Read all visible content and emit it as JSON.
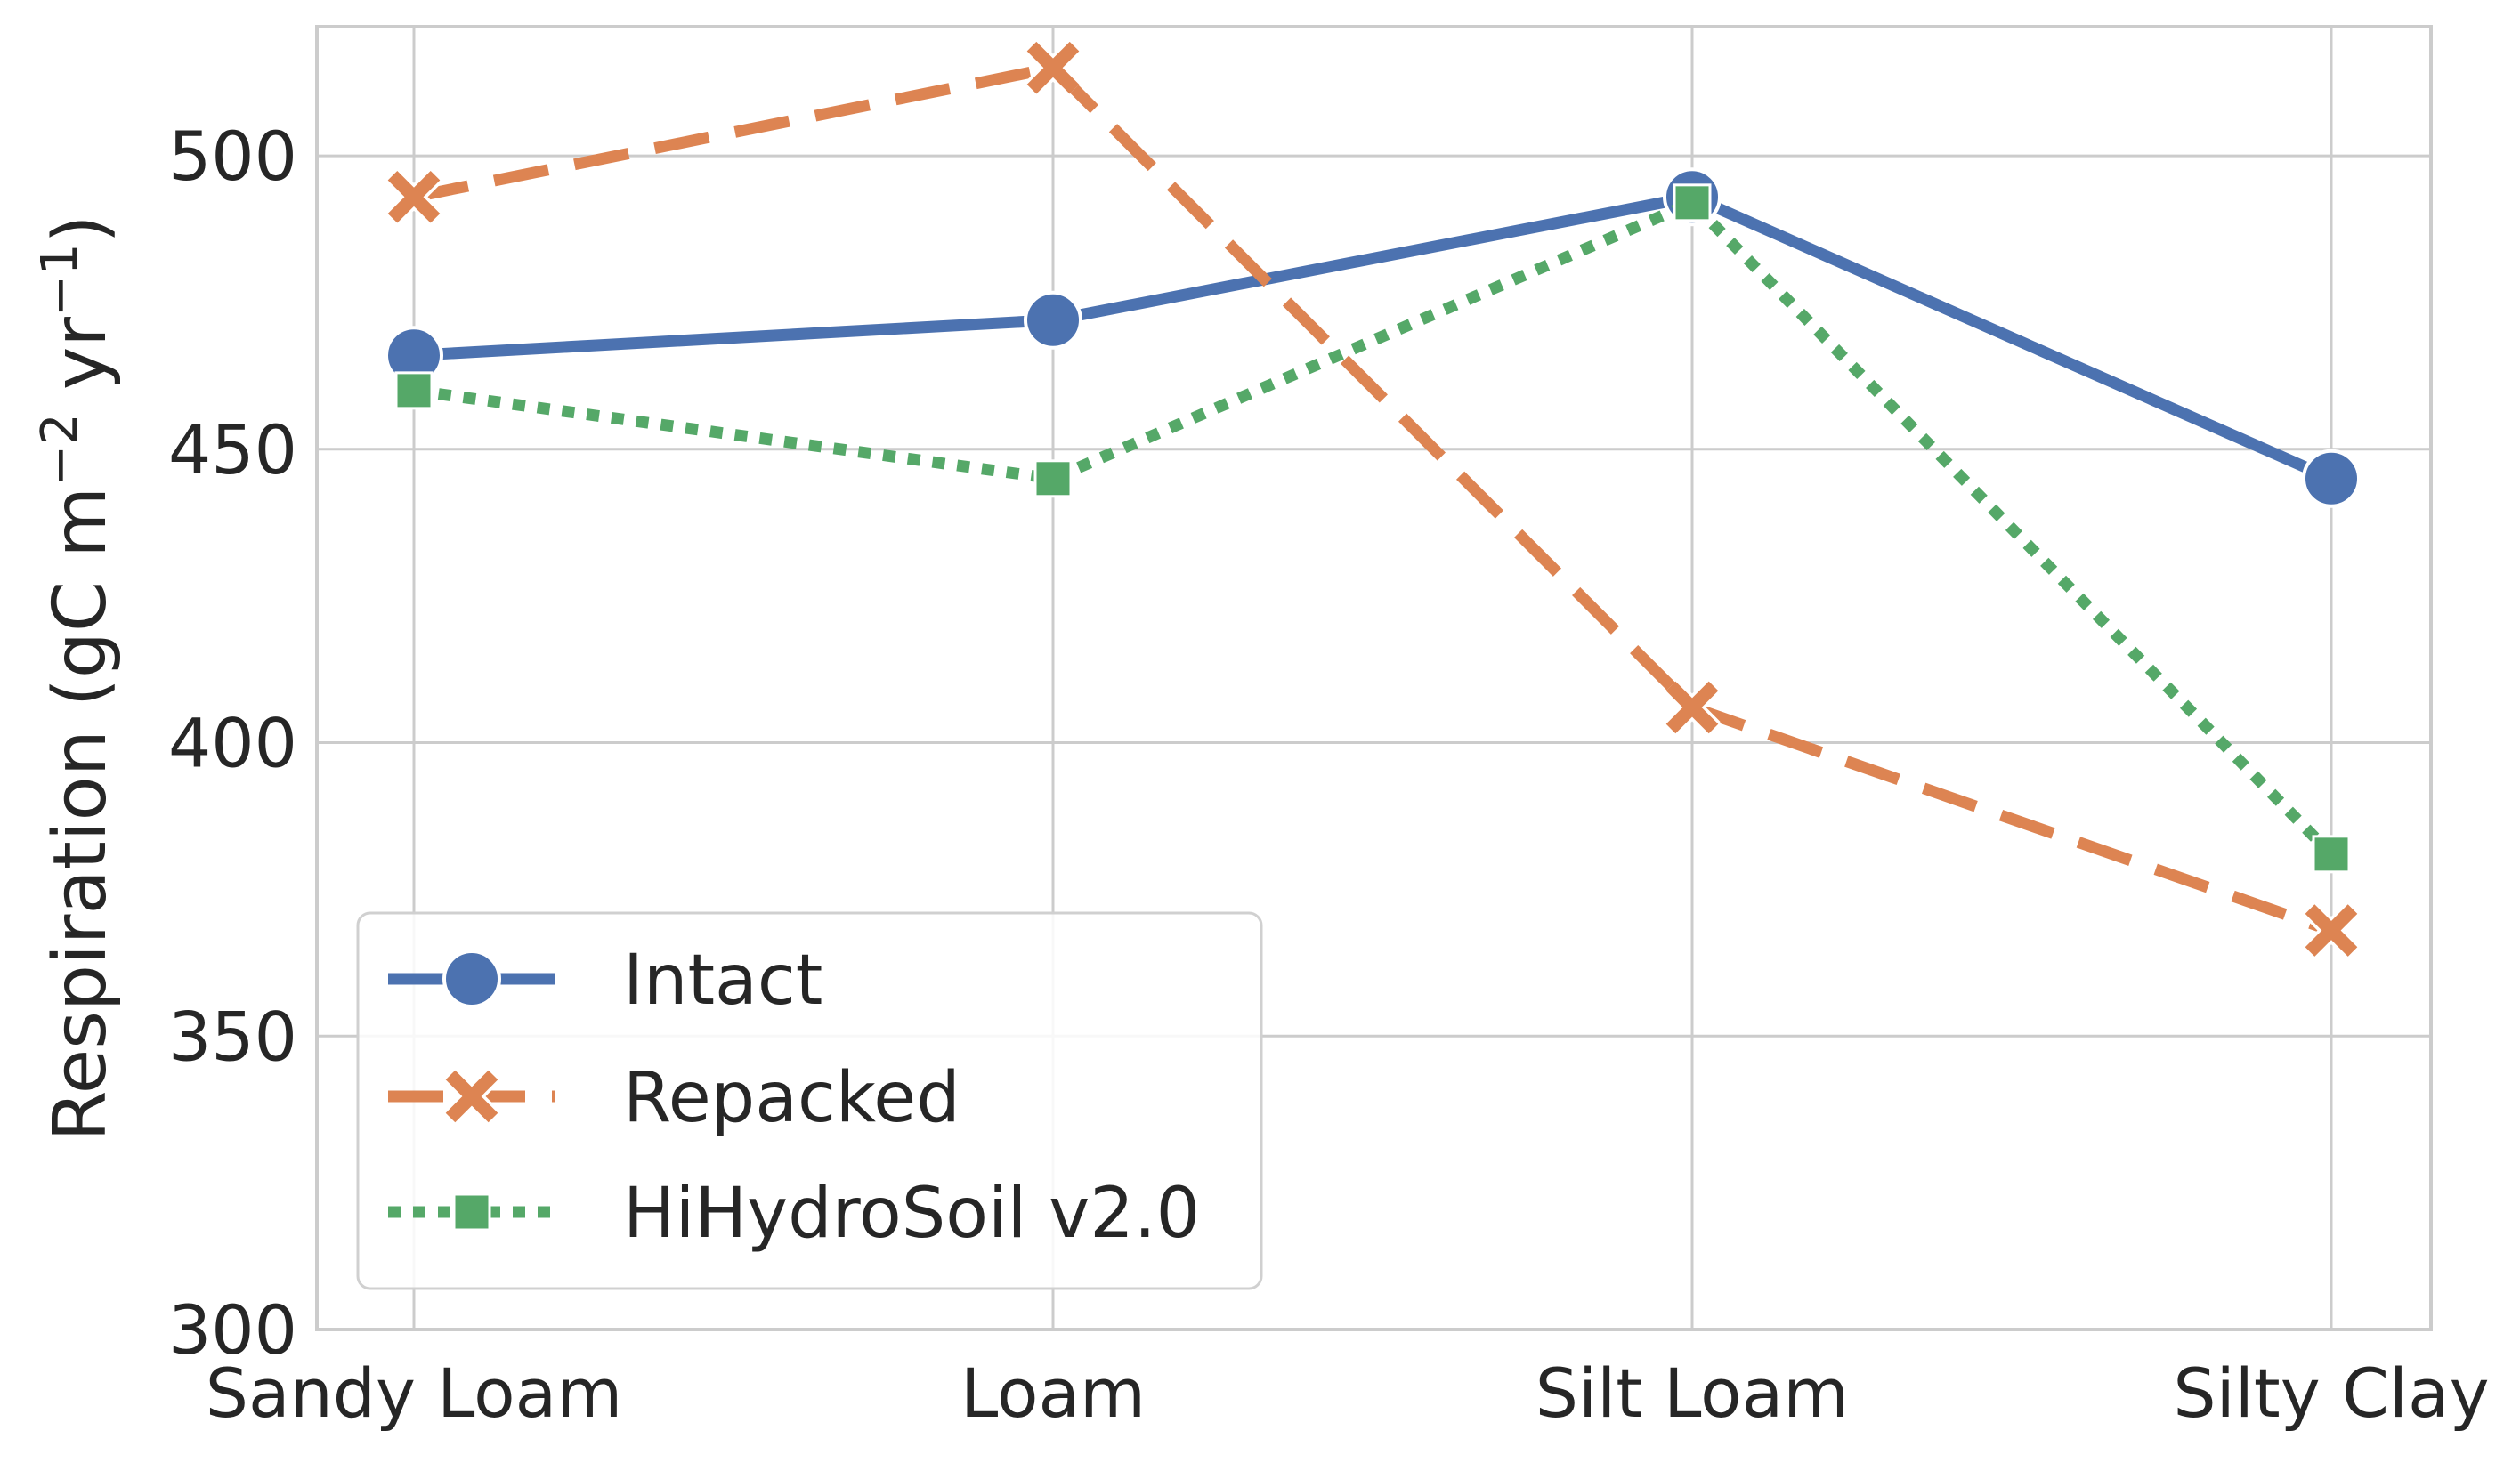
{
  "chart_data": {
    "type": "line",
    "categories": [
      "Sandy Loam",
      "Loam",
      "Silt Loam",
      "Silty Clay"
    ],
    "ylabel": {
      "main": "Respiration (gC m",
      "sup1": "−2",
      "mid": " yr",
      "sup2": "−1",
      "end": ")"
    },
    "ylim": [
      300,
      522
    ],
    "yticks": [
      300,
      350,
      400,
      450,
      500
    ],
    "grid": true,
    "legend_position": "lower-left",
    "series": [
      {
        "name": "Intact",
        "values": [
          466,
          472,
          493,
          445
        ],
        "color": "#4c72b0",
        "marker": "circle",
        "linestyle": "solid"
      },
      {
        "name": "Repacked",
        "values": [
          493,
          515,
          406,
          368
        ],
        "color": "#dd8452",
        "marker": "x",
        "linestyle": "dashed"
      },
      {
        "name": "HiHydroSoil v2.0",
        "values": [
          460,
          445,
          492,
          381
        ],
        "color": "#55a868",
        "marker": "square",
        "linestyle": "dotted"
      }
    ]
  }
}
